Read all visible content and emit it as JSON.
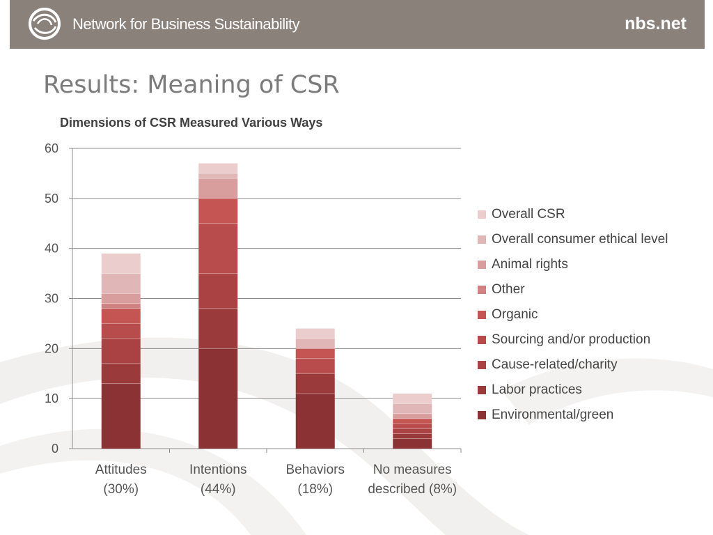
{
  "header": {
    "org_name": "Network for Business Sustainability",
    "site": "nbs.net",
    "background_color": "#8a817b"
  },
  "page_title": "Results: Meaning of CSR",
  "chart_data": {
    "type": "bar",
    "stacked": true,
    "title": "Dimensions of CSR Measured Various Ways",
    "xlabel": "",
    "ylabel": "",
    "ylim": [
      0,
      60
    ],
    "yticks": [
      0,
      10,
      20,
      30,
      40,
      50,
      60
    ],
    "grid": true,
    "legend_position": "right",
    "categories": [
      [
        "Attitudes",
        "(30%)"
      ],
      [
        "Intentions",
        "(44%)"
      ],
      [
        "Behaviors",
        "(18%)"
      ],
      [
        "No measures",
        "described (8%)"
      ]
    ],
    "series": [
      {
        "name": "Environmental/green",
        "color": "#8b3235",
        "values": [
          13,
          20,
          11,
          2
        ]
      },
      {
        "name": "Labor practices",
        "color": "#9b3a3b",
        "values": [
          4,
          8,
          4,
          1
        ]
      },
      {
        "name": "Cause-related/charity",
        "color": "#aa4243",
        "values": [
          5,
          7,
          0,
          1
        ]
      },
      {
        "name": "Sourcing and/or production",
        "color": "#b84b4b",
        "values": [
          3,
          10,
          3,
          1
        ]
      },
      {
        "name": "Organic",
        "color": "#c45553",
        "values": [
          3,
          5,
          2,
          1
        ]
      },
      {
        "name": "Other",
        "color": "#d08282",
        "values": [
          1,
          0,
          0,
          0
        ]
      },
      {
        "name": "Animal rights",
        "color": "#d89d9d",
        "values": [
          2,
          4,
          0,
          1
        ]
      },
      {
        "name": "Overall consumer ethical level",
        "color": "#e1b6b6",
        "values": [
          4,
          1,
          2,
          2
        ]
      },
      {
        "name": "Overall CSR",
        "color": "#ebcdcd",
        "values": [
          4,
          2,
          2,
          2
        ]
      }
    ]
  }
}
